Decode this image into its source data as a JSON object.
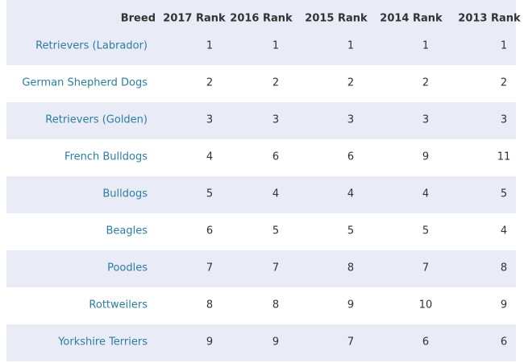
{
  "table": {
    "header": [
      "Breed",
      "2017 Rank",
      "2016 Rank",
      "2015 Rank",
      "2014 Rank",
      "2013 Rank"
    ],
    "rows": [
      [
        "Retrievers (Labrador)",
        1,
        1,
        1,
        1,
        1
      ],
      [
        "German Shepherd Dogs",
        2,
        2,
        2,
        2,
        2
      ],
      [
        "Retrievers (Golden)",
        3,
        3,
        3,
        3,
        3
      ],
      [
        "French Bulldogs",
        4,
        6,
        6,
        9,
        11
      ],
      [
        "Bulldogs",
        5,
        4,
        4,
        4,
        5
      ],
      [
        "Beagles",
        6,
        5,
        5,
        5,
        4
      ],
      [
        "Poodles",
        7,
        7,
        8,
        7,
        8
      ],
      [
        "Rottweilers",
        8,
        8,
        9,
        10,
        9
      ],
      [
        "Yorkshire Terriers",
        9,
        9,
        7,
        6,
        6
      ]
    ]
  }
}
